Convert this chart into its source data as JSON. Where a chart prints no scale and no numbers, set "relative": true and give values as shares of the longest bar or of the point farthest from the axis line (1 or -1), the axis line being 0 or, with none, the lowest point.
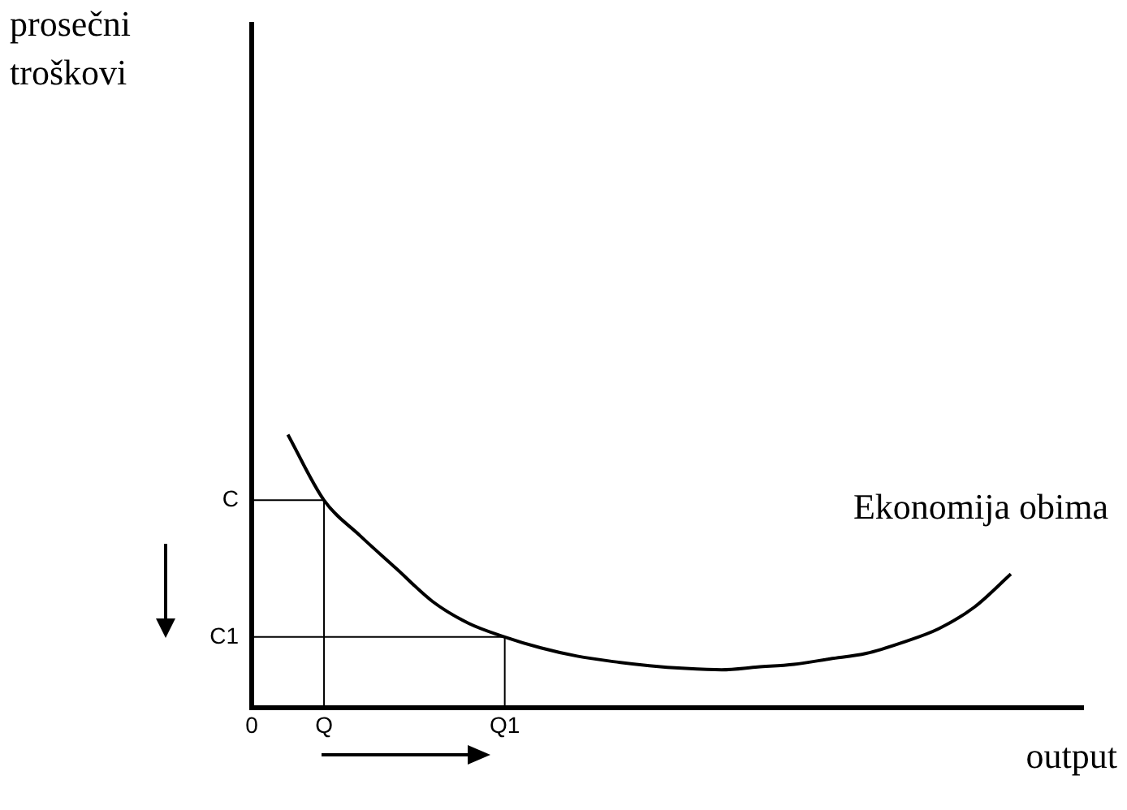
{
  "chart_data": {
    "type": "line",
    "relative": true,
    "xlabel": "output",
    "categories": [
      "0",
      null,
      "Q",
      null,
      null,
      null,
      null,
      "Q1",
      null,
      null,
      null,
      null,
      null,
      null,
      null,
      null,
      null,
      null,
      null,
      null,
      null,
      null,
      null,
      null
    ],
    "legend": false,
    "grid": false,
    "marker": "none",
    "series": [
      {
        "name": "Ekonomija obima",
        "color": "#000000",
        "values": [
          null,
          1.0,
          0.76,
          0.63,
          0.51,
          0.39,
          0.31,
          0.26,
          0.22,
          0.19,
          0.17,
          0.155,
          0.145,
          0.14,
          0.15,
          0.16,
          0.18,
          0.2,
          0.24,
          0.29,
          0.37,
          0.49,
          null,
          null
        ]
      },
      {
        "type": "step",
        "color": "#000000",
        "values": [
          0.76,
          0.76,
          0.76,
          0,
          null,
          null,
          null,
          null,
          null,
          null,
          null,
          null,
          null,
          null,
          null,
          null,
          null,
          null,
          null,
          null,
          null,
          null,
          null,
          null
        ]
      },
      {
        "type": "step",
        "color": "#000000",
        "values": [
          0.26,
          0.26,
          0.26,
          0.26,
          0.26,
          0.26,
          0.26,
          0.26,
          0,
          null,
          null,
          null,
          null,
          null,
          null,
          null,
          null,
          null,
          null,
          null,
          null,
          null,
          null,
          null
        ]
      }
    ],
    "annotations": [
      "C",
      "C1",
      "prosečni troškovi"
    ]
  }
}
